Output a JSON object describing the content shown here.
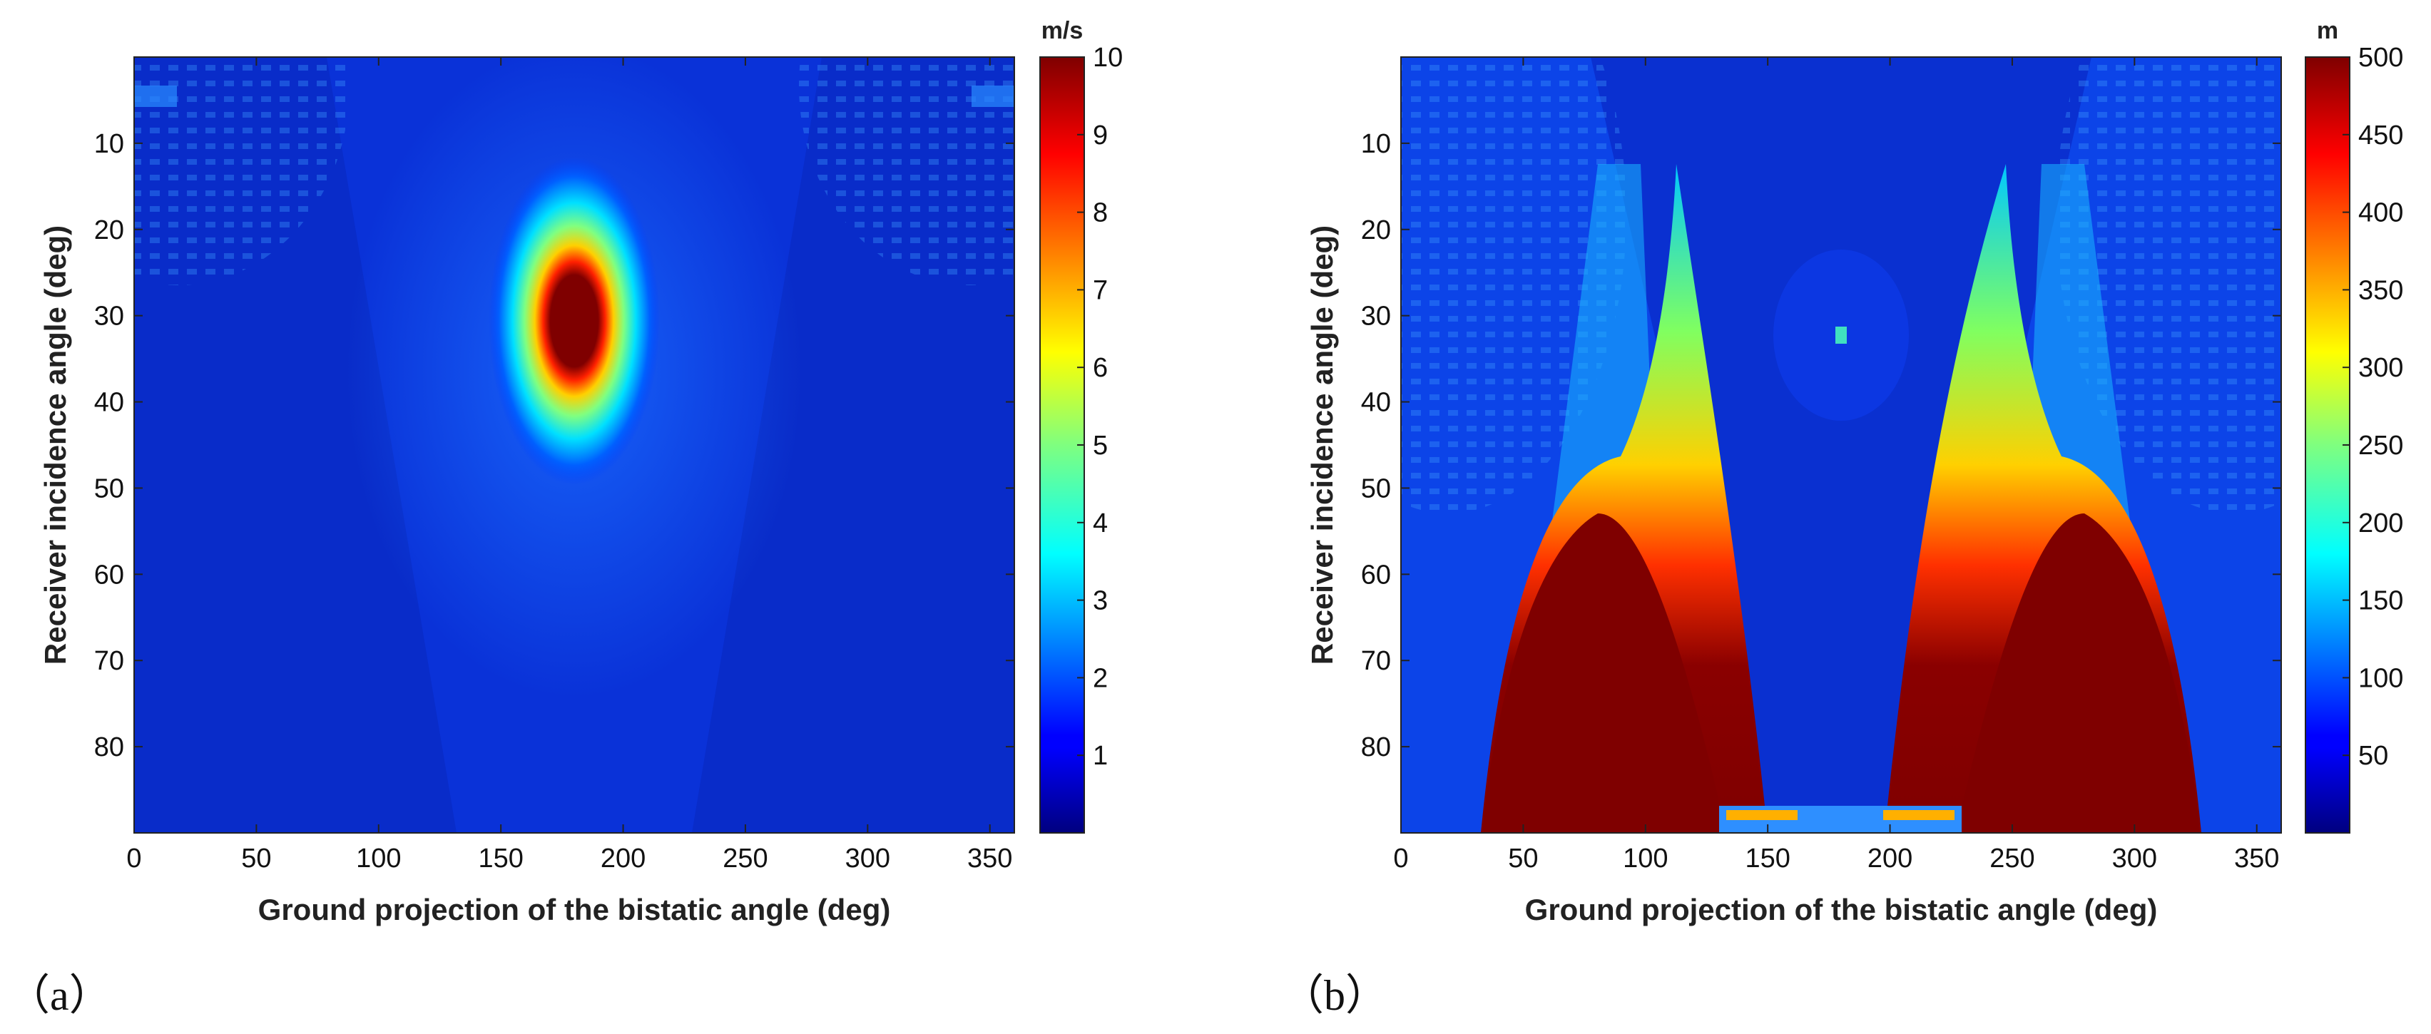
{
  "chart_data": [
    {
      "type": "heatmap",
      "panel_label": "（a）",
      "xlabel": "Ground projection of the bistatic angle (deg)",
      "ylabel": "Receiver incidence angle (deg)",
      "xlim": [
        0,
        360
      ],
      "ylim": [
        0,
        90
      ],
      "y_reversed": true,
      "xticks": [
        0,
        50,
        100,
        150,
        200,
        250,
        300,
        350
      ],
      "yticks": [
        10,
        20,
        30,
        40,
        50,
        60,
        70,
        80
      ],
      "colorbar": {
        "unit": "m/s",
        "range": [
          0,
          10
        ],
        "ticks": [
          1,
          2,
          3,
          4,
          5,
          6,
          7,
          8,
          9,
          10
        ],
        "colormap": "jet"
      },
      "features": [
        {
          "kind": "background",
          "value": 1.2
        },
        {
          "kind": "hotspot",
          "center_x": 180,
          "center_y": 31,
          "peak_value": 10
        }
      ]
    },
    {
      "type": "heatmap",
      "panel_label": "（b）",
      "xlabel": "Ground projection of the bistatic angle (deg)",
      "ylabel": "Receiver incidence angle (deg)",
      "xlim": [
        0,
        360
      ],
      "ylim": [
        0,
        90
      ],
      "y_reversed": true,
      "xticks": [
        0,
        50,
        100,
        150,
        200,
        250,
        300,
        350
      ],
      "yticks": [
        10,
        20,
        30,
        40,
        50,
        60,
        70,
        80
      ],
      "colorbar": {
        "unit": "m",
        "range": [
          0,
          500
        ],
        "ticks": [
          50,
          100,
          150,
          200,
          250,
          300,
          350,
          400,
          450,
          500
        ],
        "colormap": "jet"
      },
      "features": [
        {
          "kind": "background",
          "value": 40
        },
        {
          "kind": "saturated_region",
          "x_range": [
            50,
            150
          ],
          "peak_value": 500
        },
        {
          "kind": "saturated_region",
          "x_range": [
            210,
            310
          ],
          "peak_value": 500
        },
        {
          "kind": "spot",
          "center_x": 180,
          "center_y": 32,
          "peak_value": 200
        }
      ]
    }
  ]
}
